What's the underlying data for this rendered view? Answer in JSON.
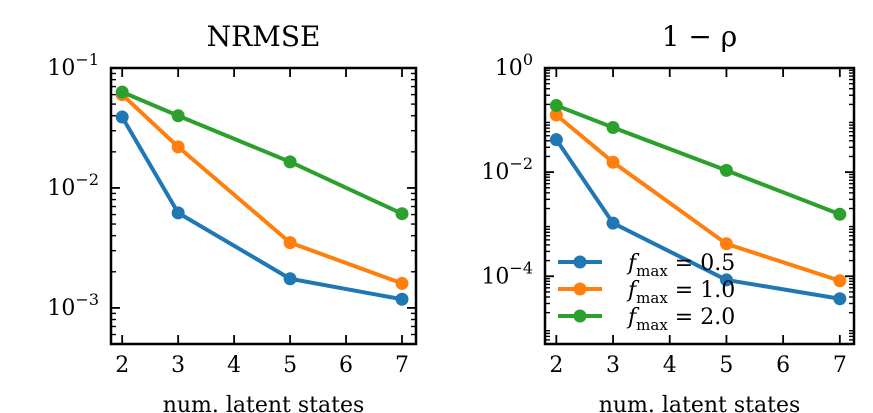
{
  "chart_data": [
    {
      "type": "line",
      "title": "NRMSE",
      "xlabel": "num. latent states",
      "ylabel": "",
      "yscale": "log",
      "xlim": [
        1.8,
        7.25
      ],
      "ylim": [
        0.0005,
        0.1
      ],
      "x": [
        2,
        3,
        5,
        7
      ],
      "xticks": [
        2,
        3,
        4,
        5,
        6,
        7
      ],
      "xtick_labels": [
        "2",
        "3",
        "4",
        "5",
        "6",
        "7"
      ],
      "yticks": [
        {
          "value": 0.1,
          "base": "10",
          "exp": "−1"
        },
        {
          "value": 0.01,
          "base": "10",
          "exp": "−2"
        },
        {
          "value": 0.001,
          "base": "10",
          "exp": "−3"
        }
      ],
      "series": [
        {
          "name": "f_max = 0.5",
          "color": "#1f77b4",
          "values": [
            0.039,
            0.0062,
            0.00175,
            0.00118
          ]
        },
        {
          "name": "f_max = 1.0",
          "color": "#ff7f0e",
          "values": [
            0.06,
            0.022,
            0.0035,
            0.0016
          ]
        },
        {
          "name": "f_max = 2.0",
          "color": "#2ca02c",
          "values": [
            0.063,
            0.04,
            0.0165,
            0.0061
          ]
        }
      ]
    },
    {
      "type": "line",
      "title": "1 − ρ",
      "xlabel": "num. latent states",
      "ylabel": "",
      "yscale": "log",
      "xlim": [
        1.8,
        7.25
      ],
      "ylim": [
        5e-06,
        1
      ],
      "x": [
        2,
        3,
        5,
        7
      ],
      "xticks": [
        2,
        3,
        4,
        5,
        6,
        7
      ],
      "xtick_labels": [
        "2",
        "3",
        "4",
        "5",
        "6",
        "7"
      ],
      "yticks": [
        {
          "value": 1,
          "base": "10",
          "exp": "0"
        },
        {
          "value": 0.01,
          "base": "10",
          "exp": "−2"
        },
        {
          "value": 0.0001,
          "base": "10",
          "exp": "−4"
        }
      ],
      "legend": {
        "location": "lower-left",
        "entries": [
          {
            "sym": "f",
            "sub": "max",
            "rest": " = 0.5",
            "color": "#1f77b4"
          },
          {
            "sym": "f",
            "sub": "max",
            "rest": " = 1.0",
            "color": "#ff7f0e"
          },
          {
            "sym": "f",
            "sub": "max",
            "rest": " = 2.0",
            "color": "#2ca02c"
          }
        ]
      },
      "series": [
        {
          "name": "f_max = 0.5",
          "color": "#1f77b4",
          "values": [
            0.042,
            0.00105,
            8.5e-05,
            3.7e-05
          ]
        },
        {
          "name": "f_max = 1.0",
          "color": "#ff7f0e",
          "values": [
            0.125,
            0.0155,
            0.00042,
            8.2e-05
          ]
        },
        {
          "name": "f_max = 2.0",
          "color": "#2ca02c",
          "values": [
            0.19,
            0.072,
            0.0108,
            0.00155
          ]
        }
      ]
    }
  ]
}
